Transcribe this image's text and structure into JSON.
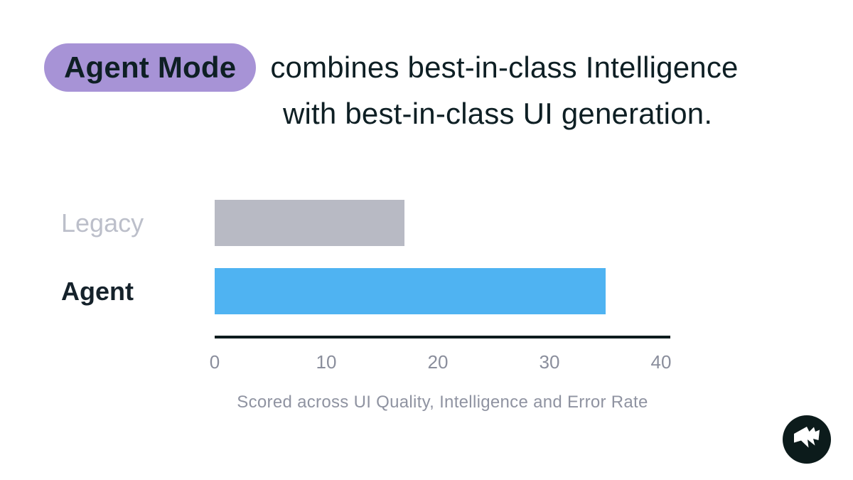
{
  "title": {
    "highlight": "Agent Mode",
    "line1_rest": "combines best-in-class Intelligence",
    "line2": "with best-in-class UI generation.",
    "highlight_bg": "#a793d6",
    "text_color": "#0e1f24"
  },
  "chart_data": {
    "type": "bar",
    "orientation": "horizontal",
    "categories": [
      "Legacy",
      "Agent"
    ],
    "values": [
      17,
      35
    ],
    "bar_colors": [
      "#b8bac4",
      "#4fb3f2"
    ],
    "label_colors": [
      "#bcbfca",
      "#15222b"
    ],
    "label_weights": [
      400,
      600
    ],
    "xlabel": "",
    "ylabel": "",
    "xlim": [
      0,
      40
    ],
    "xticks": [
      0,
      10,
      20,
      30,
      40
    ],
    "grid": "off",
    "legend": "none",
    "caption": "Scored across UI Quality, Intelligence and Error Rate",
    "axis_color": "#0d1c1e",
    "tick_color": "#8a8e9c",
    "caption_color": "#8f93a1"
  },
  "logo": {
    "circle_color": "#0c1b1b",
    "glyph_color": "#ffffff"
  }
}
